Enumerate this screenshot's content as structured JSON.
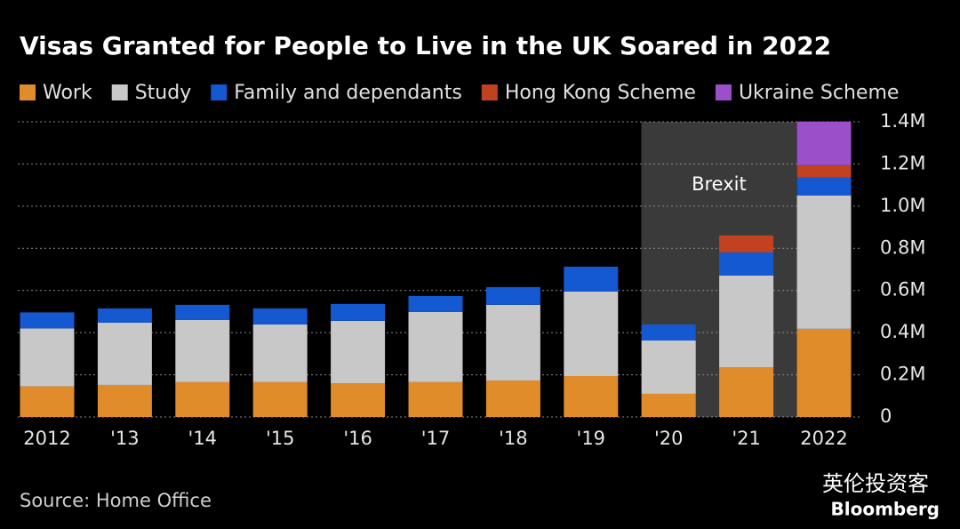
{
  "chart_data": {
    "type": "stacked-bar",
    "title": "Visas Granted for People to Live in the UK Soared in 2022",
    "categories": [
      "2012",
      "'13",
      "'14",
      "'15",
      "'16",
      "'17",
      "'18",
      "'19",
      "'20",
      "'21",
      "2022"
    ],
    "series": [
      {
        "name": "Work",
        "color": "#e08c2a",
        "values": [
          145000,
          152000,
          165000,
          165000,
          160000,
          165000,
          173000,
          194000,
          110000,
          236000,
          418000
        ]
      },
      {
        "name": "Study",
        "color": "#c8c8c8",
        "values": [
          275000,
          295000,
          295000,
          274000,
          296000,
          333000,
          359000,
          401000,
          253000,
          435000,
          633000
        ]
      },
      {
        "name": "Family and dependants",
        "color": "#1459d2",
        "values": [
          76000,
          68000,
          72000,
          76000,
          80000,
          76000,
          84000,
          118000,
          76000,
          110000,
          84000
        ]
      },
      {
        "name": "Hong Kong Scheme",
        "color": "#c2421f",
        "values": [
          null,
          null,
          null,
          null,
          null,
          null,
          null,
          null,
          null,
          80000,
          59000
        ]
      },
      {
        "name": "Ukraine Scheme",
        "color": "#9b4fc9",
        "values": [
          null,
          null,
          null,
          null,
          null,
          null,
          null,
          null,
          null,
          null,
          207000
        ]
      }
    ],
    "ylim": [
      0,
      1400000
    ],
    "yticks": [
      0,
      {
        "value": 200000,
        "label": "0.2M"
      },
      {
        "value": 400000,
        "label": "0.4M"
      },
      {
        "value": 600000,
        "label": "0.6M"
      },
      {
        "value": 800000,
        "label": "0.8M"
      },
      {
        "value": 1000000,
        "label": "1.0M"
      },
      {
        "value": 1200000,
        "label": "1.2M"
      },
      {
        "value": 1400000,
        "label": "1.4M"
      }
    ],
    "grid": true,
    "annotation": {
      "text": "Brexit",
      "from": "'20",
      "to": "'21"
    },
    "source": "Source: Home Office",
    "watermark": "英伦投资客",
    "brand": "Bloomberg"
  }
}
